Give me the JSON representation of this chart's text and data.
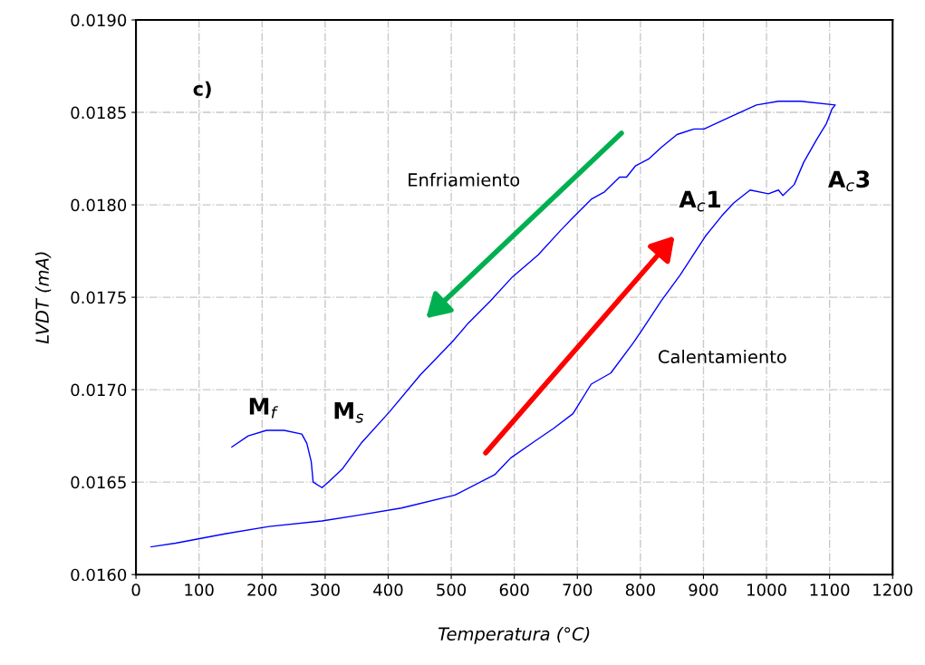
{
  "chart_data": {
    "type": "line",
    "xlabel": "Temperatura (°C)",
    "ylabel": "LVDT (mA)",
    "annotations": [
      "c)",
      "Enfriamiento",
      "Calentamiento",
      "M$_{f}$",
      "M$_{s}$",
      "A$_{c}$1",
      "A$_{c}$3"
    ],
    "xlim": [
      0,
      1200
    ],
    "xticks": [
      0,
      100,
      200,
      300,
      400,
      500,
      600,
      700,
      800,
      900,
      1000,
      1100,
      1200
    ],
    "ylim": [
      0.016,
      0.019
    ],
    "yticks": [
      {
        "value": 0.016,
        "label": "0.0160"
      },
      {
        "value": 0.0165,
        "label": "0.0165"
      },
      {
        "value": 0.017,
        "label": "0.0170"
      },
      {
        "value": 0.0175,
        "label": "0.0175"
      },
      {
        "value": 0.018,
        "label": "0.0180"
      },
      {
        "value": 0.0185,
        "label": "0.0185"
      },
      {
        "value": 0.019,
        "label": "0.0190"
      }
    ],
    "grid": true,
    "marker": "none",
    "line_style": "solid",
    "series": [
      {
        "color": "#0000ff",
        "x": [
          24,
          63,
          141,
          211,
          295,
          351,
          421,
          506,
          569,
          594,
          632,
          662,
          693,
          722,
          753,
          788,
          802,
          833,
          863,
          884,
          903,
          929,
          948,
          974,
          1003,
          1019,
          1026,
          1044,
          1059,
          1079,
          1095,
          1104,
          1109,
          1054,
          1019,
          984,
          939,
          901,
          885,
          858,
          833,
          814,
          792,
          778,
          767,
          743,
          722,
          693,
          673,
          638,
          597,
          562,
          527,
          502,
          451,
          402,
          357,
          327,
          305,
          295,
          281,
          278,
          271,
          263,
          235,
          207,
          178,
          152
        ],
        "values": [
          0.01615,
          0.01617,
          0.01622,
          0.01626,
          0.01629,
          0.01632,
          0.01636,
          0.01643,
          0.01654,
          0.01663,
          0.01672,
          0.01679,
          0.01687,
          0.01703,
          0.01709,
          0.01725,
          0.01732,
          0.01748,
          0.01762,
          0.01773,
          0.01783,
          0.01794,
          0.01801,
          0.01808,
          0.01806,
          0.01808,
          0.01805,
          0.01811,
          0.01823,
          0.01835,
          0.01844,
          0.01852,
          0.01854,
          0.01856,
          0.01856,
          0.01854,
          0.01847,
          0.01841,
          0.01841,
          0.01838,
          0.01831,
          0.01825,
          0.01821,
          0.01815,
          0.01815,
          0.01807,
          0.01803,
          0.01793,
          0.01786,
          0.01773,
          0.01761,
          0.01748,
          0.01736,
          0.01726,
          0.01708,
          0.01688,
          0.01671,
          0.01657,
          0.0165,
          0.01647,
          0.0165,
          0.01661,
          0.01671,
          0.01676,
          0.01678,
          0.01678,
          0.01675,
          0.01669
        ]
      }
    ]
  }
}
